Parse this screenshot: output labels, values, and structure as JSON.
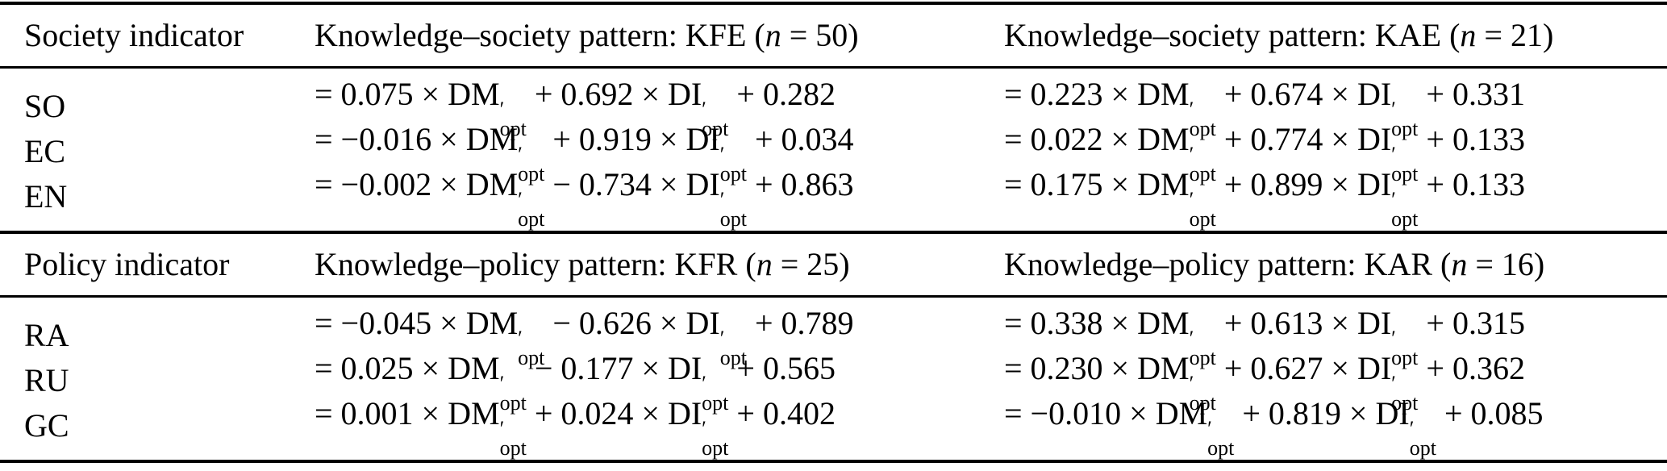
{
  "math": {
    "prime": "′",
    "subscript": "opt"
  },
  "table": {
    "sections": [
      {
        "header": {
          "indicator": "Society indicator",
          "col2": {
            "prefix": "Knowledge–society pattern: KFE (",
            "var": "n",
            "suffix": " = 50)"
          },
          "col3": {
            "prefix": "Knowledge–society pattern: KAE (",
            "var": "n",
            "suffix": " = 21)"
          }
        },
        "rows": [
          {
            "label": "SO",
            "eq2": [
              {
                "t": "= 0.075 × "
              },
              {
                "v": "DM"
              },
              {
                "t": " + 0.692 × "
              },
              {
                "v": "DI"
              },
              {
                "t": " + 0.282"
              }
            ],
            "eq3": [
              {
                "t": "= 0.223 × "
              },
              {
                "v": "DM"
              },
              {
                "t": " + 0.674 × "
              },
              {
                "v": "DI"
              },
              {
                "t": " + 0.331"
              }
            ]
          },
          {
            "label": "EC",
            "eq2": [
              {
                "t": "= −0.016 × "
              },
              {
                "v": "DM"
              },
              {
                "t": " + 0.919 × "
              },
              {
                "v": "DI"
              },
              {
                "t": " + 0.034"
              }
            ],
            "eq3": [
              {
                "t": "= 0.022 × "
              },
              {
                "v": "DM"
              },
              {
                "t": " + 0.774 × "
              },
              {
                "v": "DI"
              },
              {
                "t": " + 0.133"
              }
            ]
          },
          {
            "label": "EN",
            "eq2": [
              {
                "t": "= −0.002 × "
              },
              {
                "v": "DM"
              },
              {
                "t": " − 0.734 × "
              },
              {
                "v": "DI"
              },
              {
                "t": " + 0.863"
              }
            ],
            "eq3": [
              {
                "t": "= 0.175 × "
              },
              {
                "v": "DM"
              },
              {
                "t": " + 0.899 × "
              },
              {
                "v": "DI"
              },
              {
                "t": " + 0.133"
              }
            ]
          }
        ]
      },
      {
        "header": {
          "indicator": "Policy indicator",
          "col2": {
            "prefix": "Knowledge–policy pattern: KFR (",
            "var": "n",
            "suffix": " = 25)"
          },
          "col3": {
            "prefix": "Knowledge–policy pattern: KAR (",
            "var": "n",
            "suffix": " = 16)"
          }
        },
        "rows": [
          {
            "label": "RA",
            "eq2": [
              {
                "t": "= −0.045 × "
              },
              {
                "v": "DM"
              },
              {
                "t": " − 0.626 × "
              },
              {
                "v": "DI"
              },
              {
                "t": " + 0.789"
              }
            ],
            "eq3": [
              {
                "t": "= 0.338 × "
              },
              {
                "v": "DM"
              },
              {
                "t": " + 0.613 × "
              },
              {
                "v": "DI"
              },
              {
                "t": " + 0.315"
              }
            ]
          },
          {
            "label": "RU",
            "eq2": [
              {
                "t": "= 0.025 × "
              },
              {
                "v": "DM"
              },
              {
                "t": " − 0.177 × "
              },
              {
                "v": "DI"
              },
              {
                "t": " + 0.565"
              }
            ],
            "eq3": [
              {
                "t": "= 0.230 × "
              },
              {
                "v": "DM"
              },
              {
                "t": " + 0.627 × "
              },
              {
                "v": "DI"
              },
              {
                "t": " + 0.362"
              }
            ]
          },
          {
            "label": "GC",
            "eq2": [
              {
                "t": "= 0.001 × "
              },
              {
                "v": "DM"
              },
              {
                "t": " + 0.024 × "
              },
              {
                "v": "DI"
              },
              {
                "t": " + 0.402"
              }
            ],
            "eq3": [
              {
                "t": "= −0.010 × "
              },
              {
                "v": "DM"
              },
              {
                "t": " + 0.819 × "
              },
              {
                "v": "DI"
              },
              {
                "t": " + 0.085"
              }
            ]
          }
        ]
      }
    ]
  }
}
